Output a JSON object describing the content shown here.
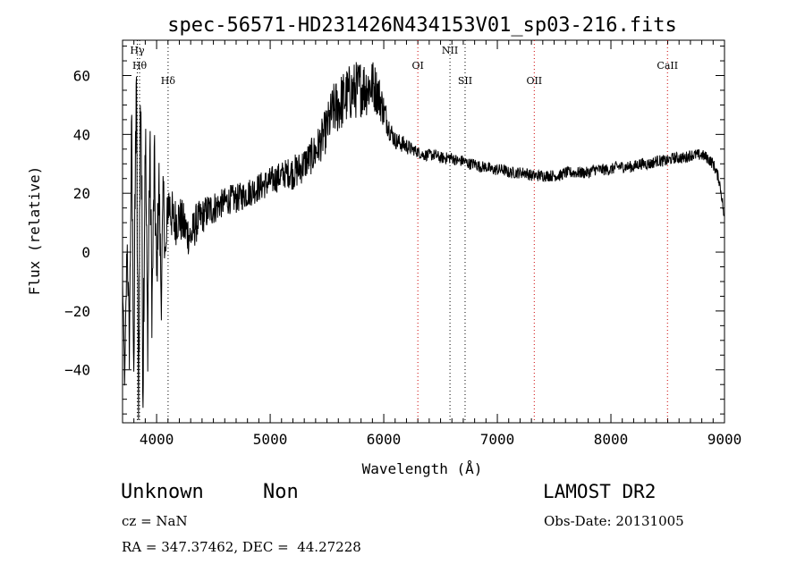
{
  "chart_data": {
    "type": "line",
    "title": "spec-56571-HD231426N434153V01_sp03-216.fits",
    "xlabel": "Wavelength (Å)",
    "ylabel": "Flux (relative)",
    "xlim": [
      3700,
      9000
    ],
    "ylim": [
      -58,
      72
    ],
    "xticks": [
      {
        "value": 4000,
        "label": "4000"
      },
      {
        "value": 5000,
        "label": "5000"
      },
      {
        "value": 6000,
        "label": "6000"
      },
      {
        "value": 7000,
        "label": "7000"
      },
      {
        "value": 8000,
        "label": "8000"
      },
      {
        "value": 9000,
        "label": "9000"
      }
    ],
    "yticks": [
      {
        "value": -40,
        "label": "−40"
      },
      {
        "value": -20,
        "label": "−20"
      },
      {
        "value": 0,
        "label": "0"
      },
      {
        "value": 20,
        "label": "20"
      },
      {
        "value": 40,
        "label": "40"
      },
      {
        "value": 60,
        "label": "60"
      }
    ],
    "lines": [
      {
        "name": "Hγ",
        "x": 3830,
        "color": "#000000",
        "label_level": 0
      },
      {
        "name": "Hθ",
        "x": 3850,
        "color": "#000000",
        "label_level": 1
      },
      {
        "name": "Hδ",
        "x": 4101,
        "color": "#000000",
        "label_level": 2
      },
      {
        "name": "OI",
        "x": 6300,
        "color": "#cc0000",
        "label_level": 1
      },
      {
        "name": "NII",
        "x": 6583,
        "color": "#000000",
        "label_level": 0
      },
      {
        "name": "SII",
        "x": 6716,
        "color": "#000000",
        "label_level": 2
      },
      {
        "name": "OII",
        "x": 7325,
        "color": "#cc0000",
        "label_level": 2
      },
      {
        "name": "CaII",
        "x": 8498,
        "color": "#cc0000",
        "label_level": 1
      }
    ],
    "series": [
      {
        "x": [
          3700,
          3720,
          3740,
          3760,
          3780,
          3800,
          3820,
          3840,
          3860,
          3880,
          3900,
          3920,
          3940,
          3960,
          3980,
          4000,
          4020,
          4040,
          4060,
          4080,
          4100,
          4150,
          4200,
          4250,
          4300,
          4350,
          4400,
          4450,
          4500,
          4550,
          4600,
          4650,
          4700,
          4750,
          4800,
          4850,
          4900,
          4950,
          5000,
          5050,
          5100,
          5150,
          5200,
          5250,
          5300,
          5350,
          5400,
          5450,
          5500,
          5550,
          5600,
          5650,
          5700,
          5750,
          5800,
          5850,
          5900,
          5950,
          6000,
          6050,
          6100,
          6150,
          6200,
          6250,
          6300,
          6350,
          6400,
          6450,
          6500,
          6550,
          6600,
          6650,
          6700,
          6750,
          6800,
          6850,
          6900,
          6950,
          7000,
          7050,
          7100,
          7150,
          7200,
          7250,
          7300,
          7350,
          7400,
          7450,
          7500,
          7550,
          7600,
          7650,
          7700,
          7750,
          7800,
          7850,
          7900,
          7950,
          8000,
          8050,
          8100,
          8150,
          8200,
          8250,
          8300,
          8350,
          8400,
          8450,
          8500,
          8550,
          8600,
          8650,
          8700,
          8750,
          8800,
          8850,
          8900,
          8950,
          8980,
          9000
        ],
        "y": [
          -10,
          -45,
          5,
          -32,
          40,
          -38,
          60,
          -55,
          64,
          -42,
          45,
          -30,
          35,
          -20,
          30,
          -10,
          25,
          -15,
          20,
          -5,
          18,
          10,
          12,
          8,
          5,
          10,
          12,
          14,
          15,
          16,
          17,
          18,
          18,
          19,
          20,
          21,
          22,
          23,
          24,
          25,
          26,
          27,
          27,
          28,
          30,
          32,
          34,
          38,
          42,
          48,
          50,
          52,
          54,
          55,
          56,
          56,
          57,
          54,
          48,
          42,
          38,
          37,
          36,
          35,
          34,
          33,
          33,
          33,
          32,
          32,
          32,
          31,
          31,
          30,
          30,
          29,
          29,
          28,
          28,
          28,
          27,
          27,
          27,
          27,
          26,
          26,
          26,
          26,
          26,
          26,
          27,
          27,
          27,
          27,
          27,
          28,
          28,
          28,
          28,
          29,
          29,
          29,
          29,
          30,
          30,
          30,
          31,
          31,
          31,
          32,
          32,
          32,
          33,
          33,
          33,
          32,
          30,
          25,
          18,
          10
        ],
        "noise_amplitude": [
          4,
          6,
          8,
          10,
          14,
          18,
          22,
          26,
          24,
          22,
          20,
          18,
          16,
          15,
          14,
          13,
          12,
          12,
          11,
          11,
          10,
          9,
          8,
          8,
          7,
          7,
          6,
          6,
          6,
          5,
          5,
          5,
          5,
          5,
          5,
          5,
          5,
          5,
          5,
          5,
          5,
          5,
          6,
          6,
          6,
          6,
          7,
          7,
          8,
          9,
          10,
          10,
          10,
          10,
          10,
          10,
          9,
          8,
          6,
          4,
          3,
          3,
          3,
          2,
          2,
          2,
          2,
          2,
          2,
          2,
          2,
          2,
          2,
          2,
          2,
          2,
          2,
          2,
          2,
          2,
          2,
          2,
          2,
          2,
          2,
          2,
          2,
          2,
          2,
          2,
          2,
          2,
          2,
          2,
          2,
          2,
          2,
          2,
          2,
          2,
          2,
          2,
          2,
          2,
          2,
          2,
          2,
          2,
          2,
          2,
          2,
          2,
          2,
          2,
          2,
          2,
          2,
          2,
          2,
          2
        ]
      }
    ]
  },
  "info": {
    "object_class": "Unknown",
    "object_subclass": "Non",
    "cz": "cz = NaN",
    "radec": "RA = 347.37462, DEC =  44.27228",
    "survey": "LAMOST DR2",
    "obs_date": "Obs-Date: 20131005"
  }
}
